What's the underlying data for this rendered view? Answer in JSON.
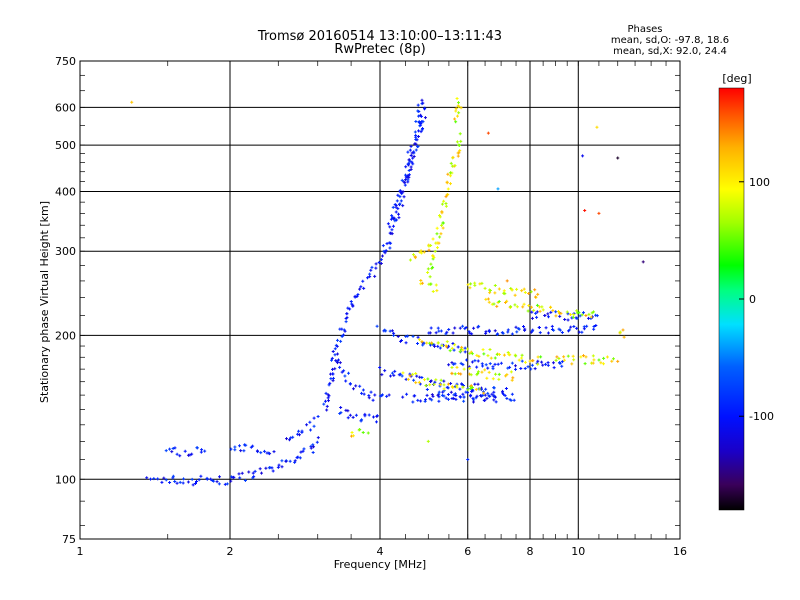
{
  "chart_data": {
    "type": "scatter",
    "title": "Tromsø 20160514 13:10:00–13:11:43",
    "subtitle": "RwPretec (8p)",
    "xlabel": "Frequency [MHz]",
    "ylabel": "Stationary phase Virtual Height [km]",
    "x_scale": "log",
    "y_scale": "log",
    "xlim": [
      1,
      16
    ],
    "ylim": [
      75,
      750
    ],
    "x_major_ticks": [
      1,
      2,
      4,
      6,
      8,
      10,
      16
    ],
    "x_tick_labels": [
      "1",
      "2",
      "4",
      "6",
      "8",
      "10",
      "16"
    ],
    "y_major_ticks": [
      75,
      100,
      200,
      300,
      400,
      500,
      600,
      750
    ],
    "y_tick_labels": [
      "75",
      "100",
      "200",
      "300",
      "400",
      "500",
      "600",
      "750"
    ],
    "grid": true,
    "stats": {
      "header": "Phases",
      "line_o": "mean, sd,O: -97.8, 18.6",
      "line_x": "mean, sd,X:  92.0, 24.4"
    },
    "colorbar": {
      "label": "[deg]",
      "range": [
        -180,
        180
      ],
      "ticks": [
        100,
        0,
        -100
      ],
      "tick_labels": [
        "100",
        "0",
        "-100"
      ],
      "colormap": "rainbow"
    },
    "series": [
      {
        "mode": "O",
        "phase_mean": -97.8,
        "traces": [
          {
            "x": [
              1.38,
              1.5,
              1.65,
              1.8,
              1.95,
              2.1,
              2.3,
              2.5,
              2.7,
              2.9,
              3.05
            ],
            "y": [
              99,
              100,
              99,
              100,
              99,
              101,
              103,
              106,
              110,
              116,
              122
            ]
          },
          {
            "x": [
              1.5,
              1.6,
              1.7,
              1.8
            ],
            "y": [
              115,
              114,
              115,
              114
            ]
          },
          {
            "x": [
              2.0,
              2.15,
              2.3,
              2.45
            ],
            "y": [
              115,
              116,
              115,
              116
            ]
          },
          {
            "x": [
              2.6,
              2.75,
              2.9,
              3.0
            ],
            "y": [
              120,
              126,
              130,
              135
            ]
          },
          {
            "x": [
              3.1,
              3.2,
              3.3,
              3.4,
              3.5,
              3.6,
              3.7,
              3.8,
              3.9,
              4.0,
              4.1,
              4.2,
              4.3,
              4.4,
              4.5,
              4.6,
              4.7,
              4.8,
              4.9
            ],
            "y": [
              140,
              165,
              190,
              215,
              232,
              245,
              256,
              266,
              276,
              288,
              300,
              322,
              350,
              385,
              425,
              470,
              520,
              575,
              630
            ]
          },
          {
            "x": [
              4.2,
              4.35,
              4.5,
              4.65,
              4.8,
              4.9
            ],
            "y": [
              340,
              380,
              420,
              470,
              530,
              600
            ]
          },
          {
            "x": [
              3.25,
              3.4,
              3.6,
              3.8,
              4.0,
              4.2
            ],
            "y": [
              180,
              165,
              155,
              150,
              148,
              150
            ]
          },
          {
            "x": [
              3.3,
              3.5,
              3.7,
              3.9,
              4.0
            ],
            "y": [
              140,
              136,
              134,
              134,
              135
            ]
          },
          {
            "x": [
              4.0,
              4.3,
              4.6,
              5.0,
              5.4,
              6.0
            ],
            "y": [
              205,
              200,
              196,
              192,
              190,
              188
            ]
          },
          {
            "x": [
              4.0,
              4.5,
              5.0,
              5.6,
              6.4,
              7.2
            ],
            "y": [
              168,
              163,
              160,
              157,
              155,
              153
            ]
          },
          {
            "x": [
              4.5,
              5.0,
              5.5,
              6.0,
              6.5,
              7.0
            ],
            "y": [
              148,
              148,
              148,
              148,
              148,
              148
            ]
          },
          {
            "x": [
              5.0,
              6.0,
              7.0,
              8.0,
              9.0,
              10.0,
              11.0
            ],
            "y": [
              205,
              205,
              205,
              205,
              205,
              206,
              206
            ]
          },
          {
            "x": [
              5.5,
              6.5,
              7.5,
              8.5,
              9.5
            ],
            "y": [
              175,
              174,
              173,
              174,
              173
            ]
          },
          {
            "x": [
              5.0,
              5.7,
              6.3,
              6.9,
              7.6
            ],
            "y": [
              152,
              150,
              150,
              148,
              148
            ]
          },
          {
            "x": [
              8.0,
              9.0,
              10.0,
              11.0
            ],
            "y": [
              220,
              220,
              219,
              219
            ]
          }
        ]
      },
      {
        "mode": "X",
        "phase_mean": 92.0,
        "traces": [
          {
            "x": [
              5.0,
              5.2,
              5.4,
              5.6,
              5.8
            ],
            "y": [
              270,
              310,
              380,
              450,
              530
            ]
          },
          {
            "x": [
              5.7,
              5.75,
              5.8
            ],
            "y": [
              560,
              600,
              640
            ]
          },
          {
            "x": [
              4.6,
              4.9,
              5.2
            ],
            "y": [
              290,
              300,
              320
            ]
          },
          {
            "x": [
              4.8,
              5.0,
              5.3
            ],
            "y": [
              260,
              255,
              250
            ]
          },
          {
            "x": [
              6.0,
              6.5,
              7.0,
              7.5,
              8.0,
              8.5
            ],
            "y": [
              255,
              252,
              248,
              246,
              245,
              244
            ]
          },
          {
            "x": [
              6.5,
              7.0,
              8.0,
              9.0,
              10.0,
              11.0
            ],
            "y": [
              235,
              232,
              228,
              224,
              222,
              220
            ]
          },
          {
            "x": [
              4.8,
              5.5,
              6.0,
              6.8,
              7.5,
              8.5
            ],
            "y": [
              195,
              190,
              186,
              182,
              180,
              177
            ]
          },
          {
            "x": [
              9.0,
              10.0,
              11.0,
              12.0
            ],
            "y": [
              178,
              178,
              178,
              178
            ]
          },
          {
            "x": [
              4.5,
              5.0,
              5.5,
              6.0,
              6.5
            ],
            "y": [
              165,
              160,
              157,
              155,
              153
            ]
          },
          {
            "x": [
              5.5,
              6.0,
              6.5,
              7.0,
              7.5
            ],
            "y": [
              170,
              168,
              166,
              165,
              164
            ]
          },
          {
            "x": [
              3.5,
              3.8
            ],
            "y": [
              125,
              127
            ]
          },
          {
            "x": [
              12.0,
              12.5
            ],
            "y": [
              200,
              202
            ]
          }
        ]
      }
    ],
    "isolated_points": [
      {
        "x": 1.27,
        "y": 615,
        "phase": 120
      },
      {
        "x": 6.6,
        "y": 530,
        "phase": 160
      },
      {
        "x": 6.9,
        "y": 405,
        "phase": -40
      },
      {
        "x": 10.2,
        "y": 475,
        "phase": -110
      },
      {
        "x": 10.9,
        "y": 545,
        "phase": 110
      },
      {
        "x": 12.0,
        "y": 470,
        "phase": -170
      },
      {
        "x": 10.3,
        "y": 365,
        "phase": 175
      },
      {
        "x": 11.0,
        "y": 360,
        "phase": 160
      },
      {
        "x": 13.5,
        "y": 285,
        "phase": -150
      },
      {
        "x": 6.0,
        "y": 110,
        "phase": -90
      },
      {
        "x": 5.0,
        "y": 120,
        "phase": 70
      },
      {
        "x": 7.2,
        "y": 260,
        "phase": 140
      }
    ]
  }
}
